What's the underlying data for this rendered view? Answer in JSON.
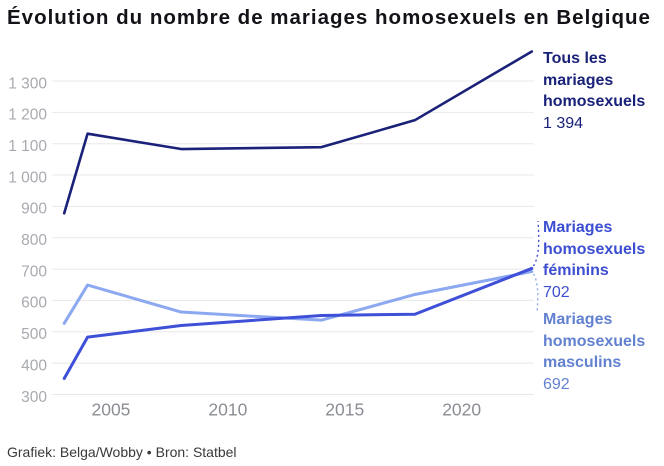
{
  "title": "Évolution du nombre de mariages homosexuels en Belgique",
  "footer": "Grafiek: Belga/Wobby • Bron: Statbel",
  "chart_data": {
    "type": "line",
    "title": "Évolution du nombre de mariages homosexuels en Belgique",
    "x": [
      2003,
      2004,
      2008,
      2014,
      2018,
      2023
    ],
    "series": [
      {
        "name": "Tous les mariages homosexuels",
        "color": "#1a2178",
        "label_color": "#1a2178",
        "values": [
          878,
          1132,
          1083,
          1089,
          1175,
          1394
        ],
        "label_lines": [
          "Tous les",
          "mariages",
          "homosexuels"
        ],
        "end_value": "1 394"
      },
      {
        "name": "Mariages homosexuels féminins",
        "color": "#3e50d8",
        "label_color": "#3c4ed1",
        "values": [
          351,
          483,
          520,
          552,
          556,
          702
        ],
        "label_lines": [
          "Mariages",
          "homosexuels",
          "féminins"
        ],
        "end_value": "702"
      },
      {
        "name": "Mariages homosexuels masculins",
        "color": "#8ba8f0",
        "label_color": "#6281cf",
        "values": [
          527,
          649,
          563,
          537,
          619,
          692
        ],
        "label_lines": [
          "Mariages",
          "homosexuels",
          "masculins"
        ],
        "end_value": "692"
      }
    ],
    "x_ticks": [
      2005,
      2010,
      2015,
      2020
    ],
    "y_ticks": [
      300,
      400,
      500,
      600,
      700,
      800,
      900,
      1000,
      1100,
      1200,
      1300
    ],
    "y_tick_labels": [
      "300",
      "400",
      "500",
      "600",
      "700",
      "800",
      "900",
      "1 000",
      "1 100",
      "1 200",
      "1 300"
    ],
    "xlim": [
      2003,
      2023
    ],
    "ylim": [
      300,
      1300
    ],
    "grid": true,
    "legend_position": "right-direct-labels"
  },
  "style": {
    "grid_color": "#e8e8ea",
    "y_tick_color": "#a8aab1",
    "x_tick_color": "#8a8d93"
  }
}
